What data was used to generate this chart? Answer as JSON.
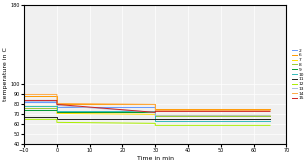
{
  "title": "",
  "xlabel": "Time in min",
  "ylabel": "temperature in C",
  "xlim": [
    -10,
    70
  ],
  "ylim": [
    40,
    180
  ],
  "yticks": [
    40,
    50,
    60,
    70,
    80,
    90,
    100,
    180
  ],
  "xticks": [
    -10,
    0,
    10,
    20,
    30,
    40,
    50,
    60,
    70
  ],
  "series": [
    {
      "label": "2",
      "color": "#6699ff",
      "points": [
        [
          -10,
          82
        ],
        [
          0,
          82
        ],
        [
          0,
          77
        ],
        [
          30,
          77
        ],
        [
          30,
          68
        ],
        [
          65,
          68
        ]
      ]
    },
    {
      "label": "6",
      "color": "#ff9900",
      "points": [
        [
          -10,
          88
        ],
        [
          0,
          88
        ],
        [
          0,
          80
        ],
        [
          30,
          80
        ],
        [
          30,
          75
        ],
        [
          65,
          75
        ]
      ]
    },
    {
      "label": "7",
      "color": "#ffdd00",
      "points": [
        [
          -10,
          78
        ],
        [
          0,
          78
        ],
        [
          0,
          71
        ],
        [
          30,
          70
        ],
        [
          30,
          69
        ],
        [
          65,
          69
        ]
      ]
    },
    {
      "label": "8",
      "color": "#99cc33",
      "points": [
        [
          -10,
          76
        ],
        [
          0,
          76
        ],
        [
          0,
          72
        ],
        [
          30,
          72
        ],
        [
          30,
          68
        ],
        [
          65,
          68
        ]
      ]
    },
    {
      "label": "9",
      "color": "#009933",
      "points": [
        [
          -10,
          74
        ],
        [
          0,
          74
        ],
        [
          0,
          72
        ],
        [
          30,
          72
        ],
        [
          30,
          65
        ],
        [
          65,
          65
        ]
      ]
    },
    {
      "label": "10",
      "color": "#33bbbb",
      "points": [
        [
          -10,
          78
        ],
        [
          0,
          78
        ],
        [
          0,
          73
        ],
        [
          30,
          73
        ],
        [
          30,
          63
        ],
        [
          65,
          63
        ]
      ]
    },
    {
      "label": "11",
      "color": "#222222",
      "points": [
        [
          -10,
          67
        ],
        [
          0,
          67
        ],
        [
          0,
          65
        ],
        [
          30,
          65
        ],
        [
          30,
          65
        ],
        [
          65,
          65
        ]
      ]
    },
    {
      "label": "12",
      "color": "#aaee00",
      "points": [
        [
          -10,
          65
        ],
        [
          0,
          65
        ],
        [
          0,
          62
        ],
        [
          30,
          61
        ],
        [
          30,
          59
        ],
        [
          65,
          59
        ]
      ]
    },
    {
      "label": "13",
      "color": "#aabbdd",
      "points": [
        [
          -10,
          83
        ],
        [
          0,
          83
        ],
        [
          0,
          79
        ],
        [
          30,
          72
        ],
        [
          30,
          69
        ],
        [
          65,
          69
        ]
      ]
    },
    {
      "label": "14",
      "color": "#ffaa44",
      "points": [
        [
          -10,
          90
        ],
        [
          0,
          90
        ],
        [
          0,
          81
        ],
        [
          30,
          80
        ],
        [
          30,
          74
        ],
        [
          65,
          74
        ]
      ]
    },
    {
      "label": "15",
      "color": "#cc2222",
      "points": [
        [
          -10,
          84
        ],
        [
          0,
          84
        ],
        [
          0,
          80
        ],
        [
          30,
          72
        ],
        [
          30,
          73
        ],
        [
          65,
          73
        ]
      ]
    }
  ]
}
